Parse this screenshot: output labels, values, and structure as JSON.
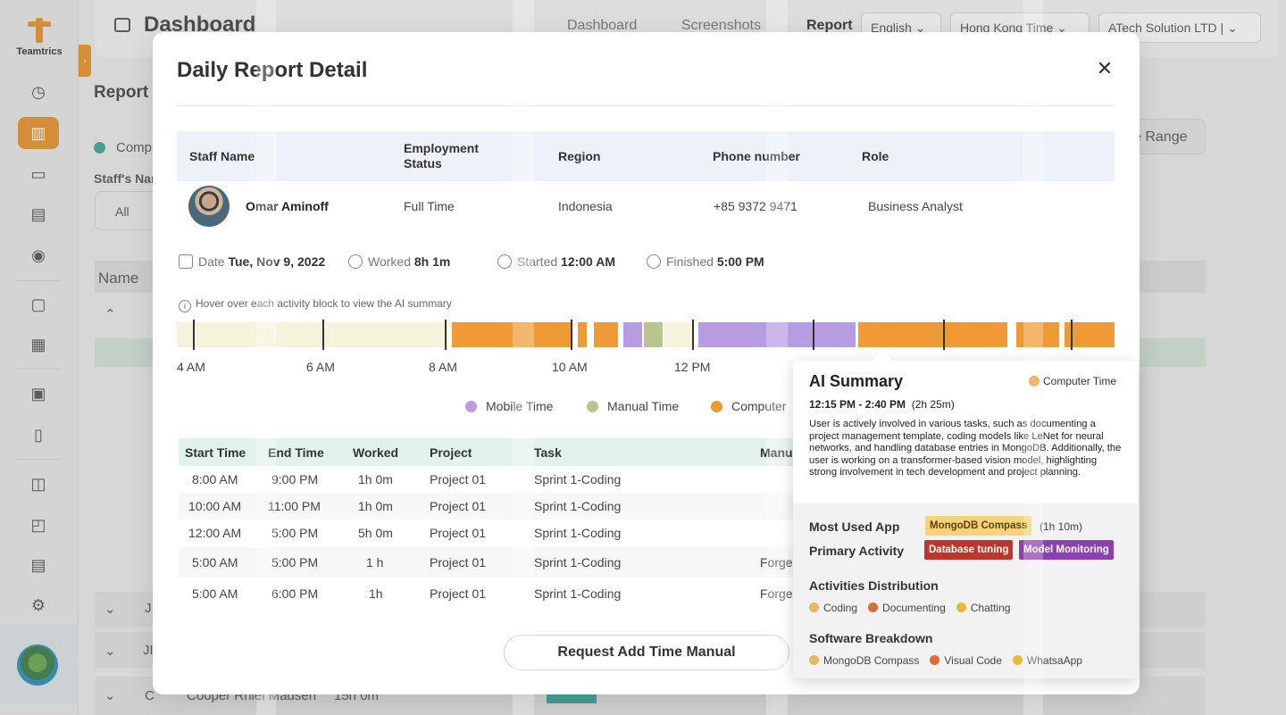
{
  "app": {
    "brand": "Teamtrics",
    "page_title": "Dashboard",
    "nav": [
      "Dashboard",
      "Screenshots",
      "Report"
    ],
    "language": "English",
    "timezone": "Hong Kong Time",
    "company": "ATech Solution LTD",
    "section_title": "Report",
    "legend_partial": "Comp",
    "staff_filter_label": "Staff's Nar",
    "filter_value": "All",
    "date_range_partial": "e Range",
    "name_column": "Name",
    "bg_rows": [
      "J",
      "JI",
      "C",
      "Cooper Rhiel Madsen",
      "15h 0m"
    ]
  },
  "modal": {
    "title": "Daily Report Detail",
    "close_label": "✕",
    "staff_headers": [
      "Staff Name",
      "Employment Status",
      "Region",
      "Phone number",
      "Role"
    ],
    "staff": {
      "name": "Omar Aminoff",
      "employment": "Full Time",
      "region": "Indonesia",
      "phone": "+85 9372 9471",
      "role": "Business Analyst"
    },
    "meta": {
      "date_label": "Date",
      "date_value": "Tue, Nov 9, 2022",
      "worked_label": "Worked",
      "worked_value": "8h 1m",
      "started_label": "Started",
      "started_value": "12:00 AM",
      "finished_label": "Finished",
      "finished_value": "5:00 PM"
    },
    "hint": "Hover over each activity block to view the AI summary",
    "timeline_labels": [
      "4 AM",
      "6 AM",
      "8 AM",
      "10 AM",
      "12 PM"
    ],
    "legend": [
      "Mobile Time",
      "Manual Time",
      "Computer"
    ],
    "colors": {
      "computer": "#ee9a35",
      "mobile": "#b79ce2",
      "manual": "#b9c48e",
      "idle": "#f6f3dc"
    },
    "table_headers": [
      "Start Time",
      "End Time",
      "Worked",
      "Project",
      "Task",
      "Manu"
    ],
    "rows": [
      {
        "start": "8:00 AM",
        "end": "9:00 PM",
        "worked": "1h 0m",
        "project": "Project 01",
        "task": "Sprint 1-Coding",
        "extra": ""
      },
      {
        "start": "10:00 AM",
        "end": "11:00 PM",
        "worked": "1h 0m",
        "project": "Project 01",
        "task": "Sprint 1-Coding",
        "extra": ""
      },
      {
        "start": "12:00 AM",
        "end": "5:00 PM",
        "worked": "5h 0m",
        "project": "Project 01",
        "task": "Sprint 1-Coding",
        "extra": ""
      },
      {
        "start": "5:00 AM",
        "end": "5:00 PM",
        "worked": "1 h",
        "project": "Project 01",
        "task": "Sprint 1-Coding",
        "extra": "Forge"
      },
      {
        "start": "5:00 AM",
        "end": "6:00 PM",
        "worked": "1h",
        "project": "Project 01",
        "task": "Sprint 1-Coding",
        "extra": "Forge"
      }
    ],
    "request_button": "Request Add Time Manual"
  },
  "summary": {
    "title": "AI Summary",
    "type": "Computer Time",
    "time_range": "12:15 PM - 2:40 PM",
    "duration": "(2h 25m)",
    "description": "User is actively involved in various tasks, such as documenting a project management template, coding models like LeNet for neural networks, and handling database entries in MongoDB. Additionally, the user is working on a transformer-based vision model, highlighting strong involvement in tech development and project planning.",
    "most_used_label": "Most Used App",
    "most_used_app": "MongoDB Compass",
    "most_used_time": "(1h 10m)",
    "primary_label": "Primary Activity",
    "primary_tags": [
      "Database tuning",
      "Model Monitoring"
    ],
    "activities_label": "Activities Distribution",
    "activities": [
      "Coding",
      "Documenting",
      "Chatting"
    ],
    "software_label": "Software Breakdown",
    "software": [
      "MongoDB Compass",
      "Visual Code",
      "WhatsaApp"
    ]
  }
}
